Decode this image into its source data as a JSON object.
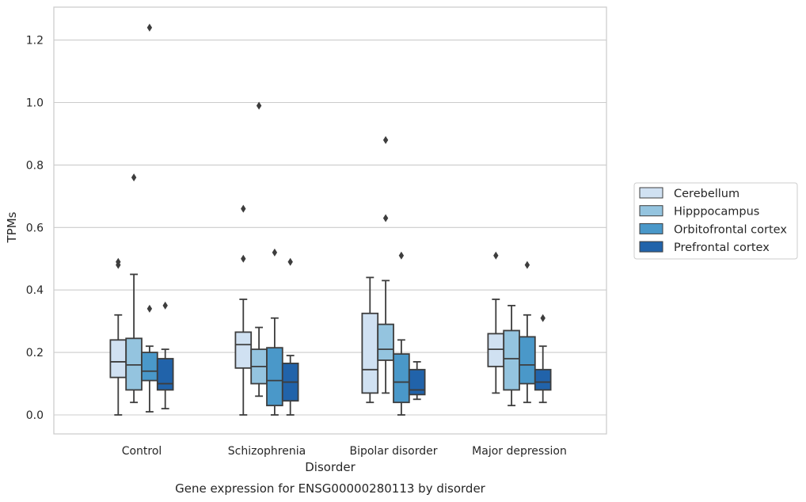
{
  "chart_data": {
    "type": "boxplot",
    "title": "",
    "caption": "Gene expression for ENSG00000280113 by disorder",
    "xlabel": "Disorder",
    "ylabel": "TPMs",
    "ylim": [
      -0.06,
      1.31
    ],
    "yticks": [
      0.0,
      0.2,
      0.4,
      0.6,
      0.8,
      1.0,
      1.2
    ],
    "ytick_labels": [
      "0.0",
      "0.2",
      "0.4",
      "0.6",
      "0.8",
      "1.0",
      "1.2"
    ],
    "grid": "horizontal",
    "legend_position": "right",
    "categories": [
      "Control",
      "Schizophrenia",
      "Bipolar disorder",
      "Major depression"
    ],
    "series": [
      {
        "name": "Cerebellum",
        "color": "#d0e1f2",
        "boxes": [
          {
            "whislo": 0.0,
            "q1": 0.12,
            "med": 0.17,
            "q3": 0.24,
            "whishi": 0.32,
            "fliers": [
              0.48,
              0.49
            ]
          },
          {
            "whislo": 0.0,
            "q1": 0.15,
            "med": 0.225,
            "q3": 0.265,
            "whishi": 0.37,
            "fliers": [
              0.5,
              0.66
            ]
          },
          {
            "whislo": 0.04,
            "q1": 0.07,
            "med": 0.145,
            "q3": 0.325,
            "whishi": 0.44,
            "fliers": []
          },
          {
            "whislo": 0.07,
            "q1": 0.155,
            "med": 0.21,
            "q3": 0.26,
            "whishi": 0.37,
            "fliers": [
              0.51
            ]
          }
        ]
      },
      {
        "name": "Hipppocampus",
        "color": "#94c4df",
        "boxes": [
          {
            "whislo": 0.04,
            "q1": 0.08,
            "med": 0.16,
            "q3": 0.245,
            "whishi": 0.45,
            "fliers": [
              0.76
            ]
          },
          {
            "whislo": 0.06,
            "q1": 0.1,
            "med": 0.155,
            "q3": 0.21,
            "whishi": 0.28,
            "fliers": [
              0.99
            ]
          },
          {
            "whislo": 0.07,
            "q1": 0.175,
            "med": 0.21,
            "q3": 0.29,
            "whishi": 0.43,
            "fliers": [
              0.63,
              0.88
            ]
          },
          {
            "whislo": 0.03,
            "q1": 0.08,
            "med": 0.18,
            "q3": 0.27,
            "whishi": 0.35,
            "fliers": []
          }
        ]
      },
      {
        "name": "Orbitofrontal cortex",
        "color": "#4a98c9",
        "boxes": [
          {
            "whislo": 0.01,
            "q1": 0.11,
            "med": 0.14,
            "q3": 0.2,
            "whishi": 0.22,
            "fliers": [
              0.34,
              1.24
            ]
          },
          {
            "whislo": 0.0,
            "q1": 0.03,
            "med": 0.11,
            "q3": 0.215,
            "whishi": 0.31,
            "fliers": [
              0.52
            ]
          },
          {
            "whislo": 0.0,
            "q1": 0.04,
            "med": 0.105,
            "q3": 0.195,
            "whishi": 0.24,
            "fliers": [
              0.51
            ]
          },
          {
            "whislo": 0.04,
            "q1": 0.1,
            "med": 0.16,
            "q3": 0.25,
            "whishi": 0.32,
            "fliers": [
              0.48
            ]
          }
        ]
      },
      {
        "name": "Prefrontal cortex",
        "color": "#2163aa",
        "boxes": [
          {
            "whislo": 0.02,
            "q1": 0.08,
            "med": 0.1,
            "q3": 0.18,
            "whishi": 0.21,
            "fliers": [
              0.35
            ]
          },
          {
            "whislo": 0.0,
            "q1": 0.045,
            "med": 0.105,
            "q3": 0.165,
            "whishi": 0.19,
            "fliers": [
              0.49
            ]
          },
          {
            "whislo": 0.05,
            "q1": 0.065,
            "med": 0.08,
            "q3": 0.145,
            "whishi": 0.17,
            "fliers": []
          },
          {
            "whislo": 0.04,
            "q1": 0.08,
            "med": 0.105,
            "q3": 0.145,
            "whishi": 0.22,
            "fliers": [
              0.31
            ]
          }
        ]
      }
    ]
  }
}
